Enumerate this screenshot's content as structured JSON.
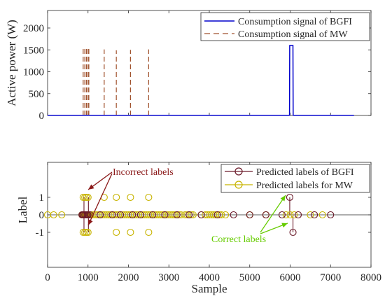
{
  "chart_data": [
    {
      "type": "line",
      "ylabel": "Active power (W)",
      "xlim": [
        0,
        8000
      ],
      "ylim": [
        0,
        2400
      ],
      "yticks": [
        0,
        500,
        1000,
        1500,
        2000
      ],
      "ytick_labels": [
        "0",
        "500",
        "1000",
        "1500",
        "2000"
      ],
      "legend_position": "top-right",
      "series": [
        {
          "name": "Consumption signal of BGFI",
          "color": "#0000cc",
          "style": "solid",
          "x": [
            0,
            5985,
            5990,
            6070,
            6075,
            7580
          ],
          "y": [
            5,
            5,
            1600,
            1600,
            5,
            5
          ]
        },
        {
          "name": "Consumption signal of MW",
          "color": "#a0522d",
          "style": "dashed",
          "spikes": [
            {
              "x": 880,
              "y": 1580
            },
            {
              "x": 920,
              "y": 1560
            },
            {
              "x": 960,
              "y": 1580
            },
            {
              "x": 1000,
              "y": 1550
            },
            {
              "x": 1020,
              "y": 1560
            },
            {
              "x": 1400,
              "y": 1510
            },
            {
              "x": 1700,
              "y": 1490
            },
            {
              "x": 2050,
              "y": 1500
            },
            {
              "x": 2500,
              "y": 1510
            }
          ]
        }
      ]
    },
    {
      "type": "scatter",
      "xlabel": "Sample",
      "ylabel": "Label",
      "xlim": [
        0,
        8000
      ],
      "ylim": [
        -3,
        3
      ],
      "xticks": [
        0,
        1000,
        2000,
        3000,
        4000,
        5000,
        6000,
        7000,
        8000
      ],
      "xtick_labels": [
        "0",
        "1000",
        "2000",
        "3000",
        "4000",
        "5000",
        "6000",
        "7000",
        "8000"
      ],
      "yticks": [
        -1,
        0,
        1
      ],
      "ytick_labels": [
        "-1",
        "0",
        "1"
      ],
      "legend_position": "top-right",
      "series": [
        {
          "name": "Predicted labels of BGFI",
          "color": "#6b1a2a",
          "x": [
            850,
            870,
            890,
            920,
            950,
            980,
            1000,
            1050,
            1300,
            1600,
            1800,
            2100,
            2300,
            2600,
            2900,
            3200,
            3500,
            3800,
            4200,
            4600,
            5000,
            5400,
            5800,
            5990,
            6070,
            6200,
            6600,
            7000
          ],
          "y": [
            0,
            0,
            0,
            0,
            0,
            0,
            0,
            0,
            0,
            0,
            0,
            0,
            0,
            0,
            0,
            0,
            0,
            0,
            0,
            0,
            0,
            0,
            0,
            1,
            -1,
            0,
            0,
            0
          ]
        },
        {
          "name": "Predicted labels for MW",
          "color": "#c8b400",
          "x": [
            0,
            150,
            350,
            850,
            880,
            900,
            920,
            940,
            960,
            980,
            1000,
            1020,
            1040,
            1060,
            1100,
            1150,
            1200,
            1250,
            1300,
            1350,
            1400,
            1450,
            1500,
            1550,
            1600,
            1650,
            1700,
            1750,
            1800,
            1850,
            1900,
            1950,
            2000,
            2050,
            2100,
            2150,
            2200,
            2250,
            2300,
            2350,
            2400,
            2450,
            2500,
            2550,
            2600,
            2650,
            2700,
            2750,
            2800,
            2850,
            2900,
            2950,
            3000,
            3050,
            3100,
            3150,
            3200,
            3250,
            3300,
            3400,
            3450,
            3500,
            3550,
            3600,
            3800,
            3900,
            3950,
            4000,
            4050,
            4100,
            4150,
            4200,
            4250,
            4300,
            4400,
            5000,
            5400,
            5900,
            6000,
            6100,
            6500,
            6800,
            880,
            920,
            960,
            1000,
            1400,
            1700,
            2050,
            2500,
            880,
            920,
            960,
            1000,
            1700,
            2050,
            2500
          ],
          "y": [
            0,
            0,
            0,
            0,
            0,
            0,
            0,
            0,
            0,
            0,
            0,
            0,
            0,
            0,
            0,
            0,
            0,
            0,
            0,
            0,
            0,
            0,
            0,
            0,
            0,
            0,
            0,
            0,
            0,
            0,
            0,
            0,
            0,
            0,
            0,
            0,
            0,
            0,
            0,
            0,
            0,
            0,
            0,
            0,
            0,
            0,
            0,
            0,
            0,
            0,
            0,
            0,
            0,
            0,
            0,
            0,
            0,
            0,
            0,
            0,
            0,
            0,
            0,
            0,
            0,
            0,
            0,
            0,
            0,
            0,
            0,
            0,
            0,
            0,
            0,
            0,
            0,
            0,
            0,
            0,
            0,
            0,
            1,
            1,
            1,
            1,
            1,
            1,
            1,
            1,
            -1,
            -1,
            -1,
            -1,
            -1,
            -1,
            -1
          ]
        }
      ],
      "annotations": [
        {
          "text": "Incorrect labels",
          "color": "#8b1a1a"
        },
        {
          "text": "Correct labels",
          "color": "#66cc00"
        }
      ]
    }
  ]
}
